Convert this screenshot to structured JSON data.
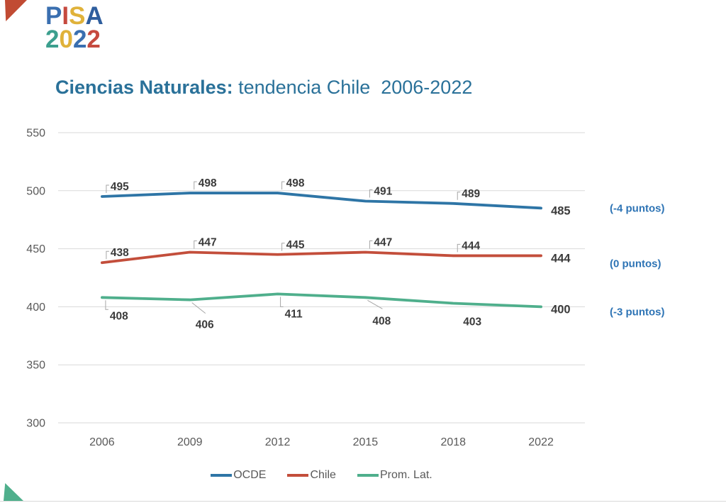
{
  "logo": {
    "line1": "PISA",
    "line2": "2022",
    "line1_colors": [
      "#3A6FB0",
      "#C64A3F",
      "#E0B23A",
      "#2F5E9E"
    ],
    "line2_colors": [
      "#3C9F8E",
      "#E0B23A",
      "#3A6FB0",
      "#C64A3F"
    ]
  },
  "decorations": {
    "top_left_triangle_color": "#C14B33",
    "bottom_left_triangle_color": "#4FAF8C",
    "bottom_rule_color": "#D9D9D9"
  },
  "title": {
    "bold": "Ciencias Naturales:",
    "regular": " tendencia Chile  2006-2022",
    "color": "#2A7199"
  },
  "chart_data": {
    "type": "line",
    "title": "Ciencias Naturales: tendencia Chile 2006-2022",
    "categories": [
      "2006",
      "2009",
      "2012",
      "2015",
      "2018",
      "2022"
    ],
    "series": [
      {
        "name": "OCDE",
        "color": "#2E75A6",
        "values": [
          495,
          498,
          498,
          491,
          489,
          485
        ],
        "change_annotation": "(-4 puntos)"
      },
      {
        "name": "Chile",
        "color": "#C34E3B",
        "values": [
          438,
          447,
          445,
          447,
          444,
          444
        ],
        "change_annotation": "(0 puntos)"
      },
      {
        "name": "Prom. Lat.",
        "color": "#4FAF8C",
        "values": [
          408,
          406,
          411,
          408,
          403,
          400
        ],
        "change_annotation": "(-3 puntos)"
      }
    ],
    "ylim": [
      300,
      550
    ],
    "yticks": [
      300,
      350,
      400,
      450,
      500,
      550
    ],
    "grid": "horizontal-gridlines",
    "legend_position": "bottom",
    "colors": {
      "annotation": "#2E74B5",
      "data_label": "#3B3B3B",
      "axis_label": "#595959",
      "gridline": "#D9D9D9",
      "leader": "#A6A6A6"
    }
  }
}
